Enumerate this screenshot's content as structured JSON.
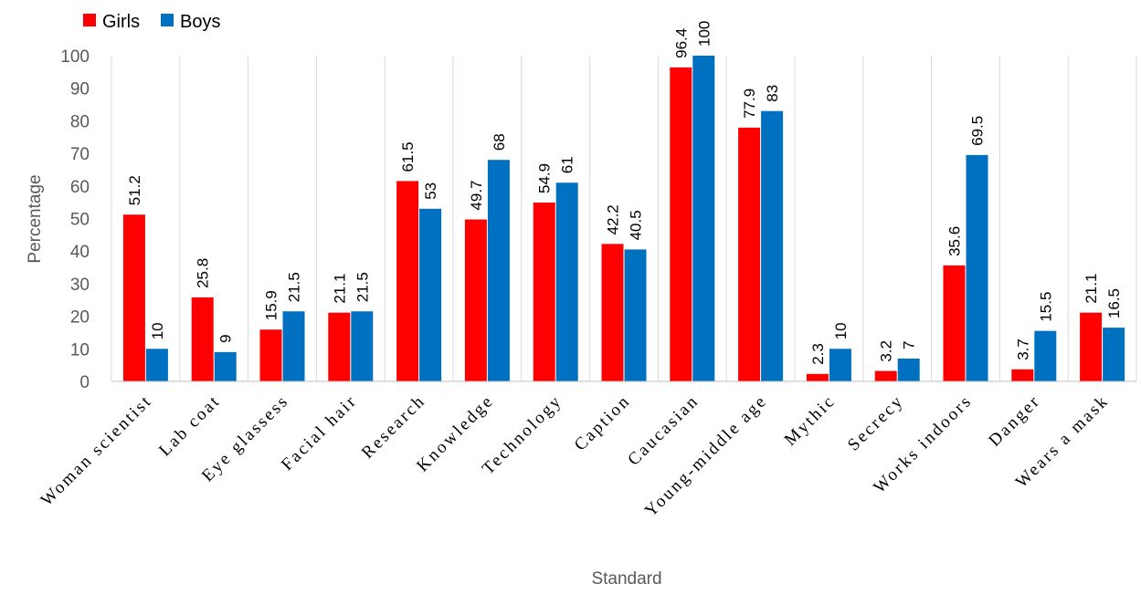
{
  "chart_data": {
    "type": "bar",
    "categories": [
      "Woman scientist",
      "Lab coat",
      "Eye glassess",
      "Facial hair",
      "Research",
      "Knowledge",
      "Technology",
      "Caption",
      "Caucasian",
      "Young-middle age",
      "Mythic",
      "Secrecy",
      "Works indoors",
      "Danger",
      "Wears a mask"
    ],
    "series": [
      {
        "name": "Girls",
        "color": "#ff0000",
        "values": [
          51.2,
          25.8,
          15.9,
          21.1,
          61.5,
          49.7,
          54.9,
          42.2,
          96.4,
          77.9,
          2.3,
          3.2,
          35.6,
          3.7,
          21.1
        ]
      },
      {
        "name": "Boys",
        "color": "#0070c0",
        "values": [
          10,
          9,
          21.5,
          21.5,
          53,
          68,
          61,
          40.5,
          100,
          83,
          10,
          7,
          69.5,
          15.5,
          16.5
        ]
      }
    ],
    "xlabel": "Standard",
    "ylabel": "Percentage",
    "ylim": [
      0,
      100
    ],
    "yticks": [
      0,
      10,
      20,
      30,
      40,
      50,
      60,
      70,
      80,
      90,
      100
    ],
    "grid": "vertical category separators",
    "legend": "top-left"
  }
}
